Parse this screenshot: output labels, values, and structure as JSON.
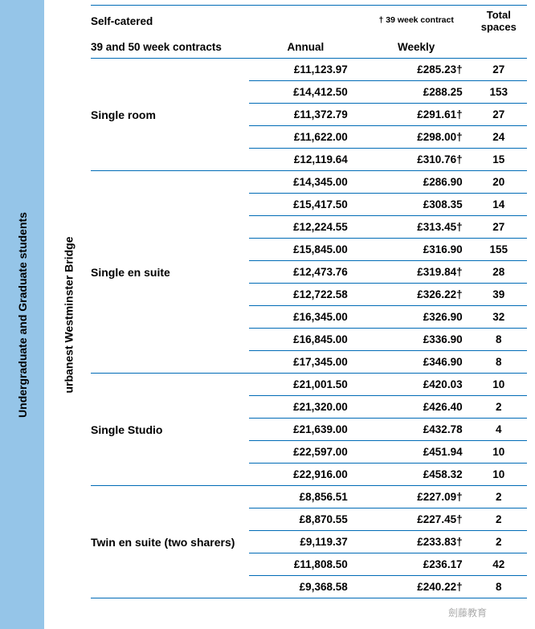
{
  "students_label": "Undergraduate and Graduate students",
  "residence_label": "urbanest Westminster Bridge",
  "header": {
    "line1_left": "Self-catered",
    "line2_left": "39 and 50 week contracts",
    "annual": "Annual",
    "weekly_note": "† 39 week contract",
    "weekly": "Weekly",
    "spaces": "Total spaces"
  },
  "sections": [
    {
      "name": "Single room",
      "rows": [
        {
          "annual": "£11,123.97",
          "weekly": "£285.23†",
          "spaces": "27"
        },
        {
          "annual": "£14,412.50",
          "weekly": "£288.25",
          "spaces": "153"
        },
        {
          "annual": "£11,372.79",
          "weekly": "£291.61†",
          "spaces": "27"
        },
        {
          "annual": "£11,622.00",
          "weekly": "£298.00†",
          "spaces": "24"
        },
        {
          "annual": "£12,119.64",
          "weekly": "£310.76†",
          "spaces": "15"
        }
      ]
    },
    {
      "name": "Single en suite",
      "rows": [
        {
          "annual": "£14,345.00",
          "weekly": "£286.90",
          "spaces": "20"
        },
        {
          "annual": "£15,417.50",
          "weekly": "£308.35",
          "spaces": "14"
        },
        {
          "annual": "£12,224.55",
          "weekly": "£313.45†",
          "spaces": "27"
        },
        {
          "annual": "£15,845.00",
          "weekly": "£316.90",
          "spaces": "155"
        },
        {
          "annual": "£12,473.76",
          "weekly": "£319.84†",
          "spaces": "28"
        },
        {
          "annual": "£12,722.58",
          "weekly": "£326.22†",
          "spaces": "39"
        },
        {
          "annual": "£16,345.00",
          "weekly": "£326.90",
          "spaces": "32"
        },
        {
          "annual": "£16,845.00",
          "weekly": "£336.90",
          "spaces": "8"
        },
        {
          "annual": "£17,345.00",
          "weekly": "£346.90",
          "spaces": "8"
        }
      ]
    },
    {
      "name": "Single Studio",
      "rows": [
        {
          "annual": "£21,001.50",
          "weekly": "£420.03",
          "spaces": "10"
        },
        {
          "annual": "£21,320.00",
          "weekly": "£426.40",
          "spaces": "2"
        },
        {
          "annual": "£21,639.00",
          "weekly": "£432.78",
          "spaces": "4"
        },
        {
          "annual": "£22,597.00",
          "weekly": "£451.94",
          "spaces": "10"
        },
        {
          "annual": "£22,916.00",
          "weekly": "£458.32",
          "spaces": "10"
        }
      ]
    },
    {
      "name": "Twin en suite (two sharers)",
      "rows": [
        {
          "annual": "£8,856.51",
          "weekly": "£227.09†",
          "spaces": "2"
        },
        {
          "annual": "£8,870.55",
          "weekly": "£227.45†",
          "spaces": "2"
        },
        {
          "annual": "£9,119.37",
          "weekly": "£233.83†",
          "spaces": "2"
        },
        {
          "annual": "£11,808.50",
          "weekly": "£236.17",
          "spaces": "42"
        },
        {
          "annual": "£9,368.58",
          "weekly": "£240.22†",
          "spaces": "8"
        }
      ]
    }
  ],
  "watermark": "劍藤教育"
}
